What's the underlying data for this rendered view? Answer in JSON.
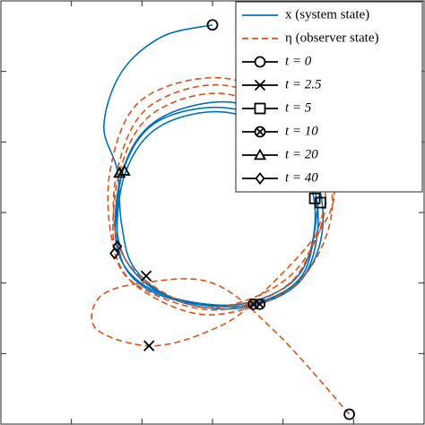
{
  "chart_data": {
    "type": "line",
    "xlim": [
      0,
      6
    ],
    "ylim": [
      0,
      6
    ],
    "xticks": [
      1,
      2,
      3,
      4,
      5
    ],
    "yticks": [
      1,
      2,
      3,
      4,
      5
    ],
    "legend": "upper right",
    "series": [
      {
        "name": "x (system state)",
        "color": "#0072bd",
        "dash": "solid",
        "x": [
          3.0,
          2.28,
          1.71,
          1.46,
          1.65,
          1.71,
          1.9,
          2.53,
          3.61,
          4.37,
          4.56,
          4.18,
          3.29,
          2.28,
          1.77,
          1.65,
          1.96,
          2.66,
          3.54,
          4.3,
          4.49,
          4.11,
          3.23,
          2.22,
          1.73,
          1.63,
          1.92,
          2.6,
          3.5,
          4.25,
          4.45,
          4.08,
          3.2,
          2.25,
          1.76,
          1.66,
          1.95,
          2.65,
          3.55,
          4.28,
          4.5
        ],
        "y": [
          5.66,
          5.49,
          4.99,
          4.23,
          3.6,
          2.84,
          2.2,
          1.76,
          1.7,
          2.2,
          3.09,
          4.1,
          4.56,
          4.35,
          3.72,
          2.71,
          2.08,
          1.7,
          1.67,
          2.1,
          3.09,
          4.04,
          4.48,
          4.29,
          3.59,
          2.6,
          2.05,
          1.75,
          1.72,
          2.15,
          3.1,
          3.98,
          4.42,
          4.22,
          3.55,
          2.55,
          2.0,
          1.72,
          1.7,
          2.12,
          3.12
        ]
      },
      {
        "name": "η (observer state)",
        "color": "#d95319",
        "dash": "dashed",
        "x": [
          4.94,
          3.9,
          3.0,
          2.0,
          1.4,
          1.35,
          2.1,
          2.9,
          3.6,
          4.7,
          4.3,
          3.2,
          2.0,
          1.55,
          1.6,
          2.0,
          3.0,
          4.2,
          4.7,
          4.3,
          3.2,
          2.1,
          1.65,
          1.65,
          2.1,
          3.0,
          4.1,
          4.6,
          4.25,
          3.2,
          2.15,
          1.68,
          1.62,
          2.05,
          3.1,
          4.15,
          4.62
        ],
        "y": [
          0.14,
          1.3,
          2.0,
          2.0,
          1.8,
          1.35,
          1.11,
          1.3,
          1.75,
          3.1,
          4.3,
          4.9,
          4.6,
          3.6,
          2.5,
          1.9,
          1.55,
          2.0,
          3.1,
          4.2,
          4.8,
          4.5,
          3.6,
          2.6,
          2.0,
          1.65,
          2.1,
          3.1,
          4.1,
          4.68,
          4.4,
          3.56,
          2.42,
          1.9,
          1.62,
          2.05,
          3.15
        ]
      }
    ],
    "markers": [
      {
        "name": "t = 0",
        "symbol": "circle",
        "x": [
          3.0,
          4.94
        ],
        "y": [
          5.66,
          0.14
        ]
      },
      {
        "name": "t = 2.5",
        "symbol": "cross",
        "x": [
          2.06,
          2.1
        ],
        "y": [
          2.1,
          1.11
        ]
      },
      {
        "name": "t = 5",
        "symbol": "square",
        "x": [
          4.53,
          4.45
        ],
        "y": [
          3.14,
          3.2
        ]
      },
      {
        "name": "t = 10",
        "symbol": "otimes",
        "x": [
          3.58,
          3.67
        ],
        "y": [
          1.7,
          1.7
        ]
      },
      {
        "name": "t = 20",
        "symbol": "triangle",
        "x": [
          1.75,
          1.68
        ],
        "y": [
          3.59,
          3.56
        ]
      },
      {
        "name": "t = 40",
        "symbol": "diamond",
        "x": [
          1.65,
          1.61
        ],
        "y": [
          2.52,
          2.42
        ]
      }
    ]
  }
}
